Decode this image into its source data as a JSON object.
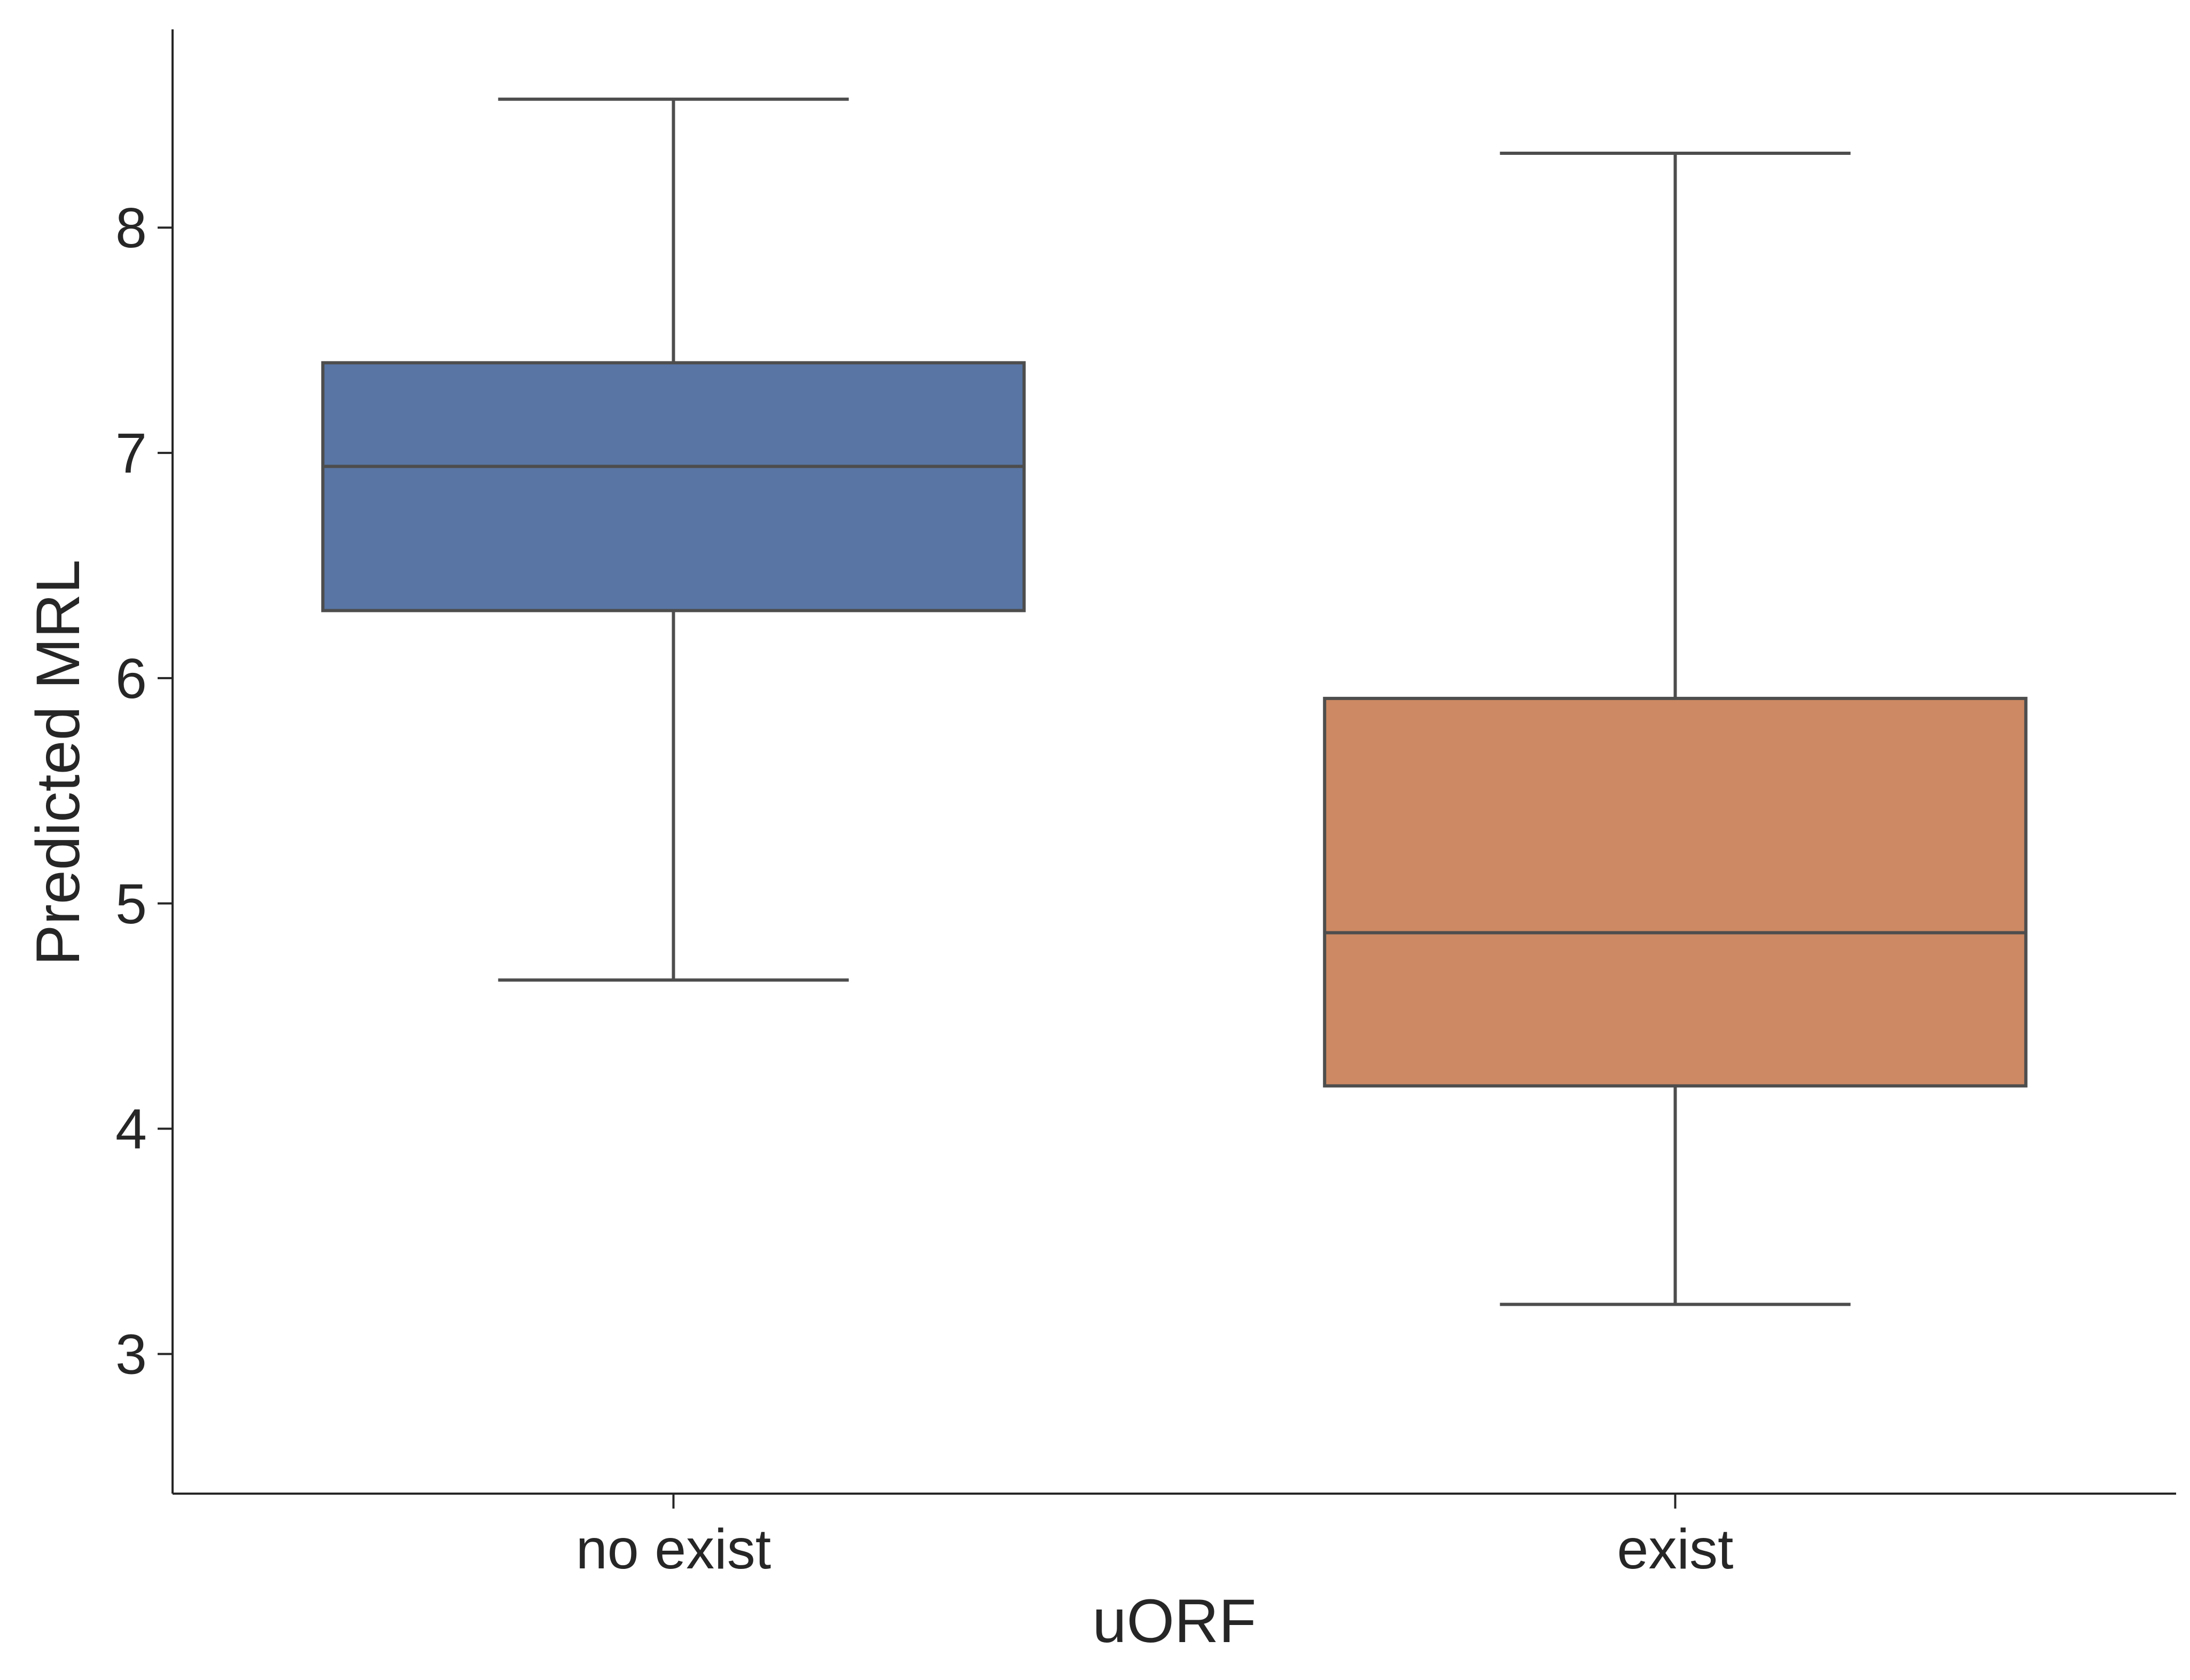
{
  "chart_data": {
    "type": "box",
    "xlabel": "uORF",
    "ylabel": "Predicted MRL",
    "ylim": [
      2.38,
      8.88
    ],
    "yticks": [
      3,
      4,
      5,
      6,
      7,
      8
    ],
    "ytick_labels": [
      "3",
      "4",
      "5",
      "6",
      "7",
      "8"
    ],
    "grid": false,
    "categories": [
      "no exist",
      "exist"
    ],
    "boxes": [
      {
        "category": "no exist",
        "whisker_low": 4.66,
        "q1": 6.3,
        "median": 6.94,
        "q3": 7.4,
        "whisker_high": 8.57,
        "color": "#5875a4"
      },
      {
        "category": "exist",
        "whisker_low": 3.22,
        "q1": 4.19,
        "median": 4.87,
        "q3": 5.91,
        "whisker_high": 8.33,
        "color": "#cc8963"
      }
    ],
    "line_color": "#4d4d4d",
    "axis_color": "#262626"
  }
}
